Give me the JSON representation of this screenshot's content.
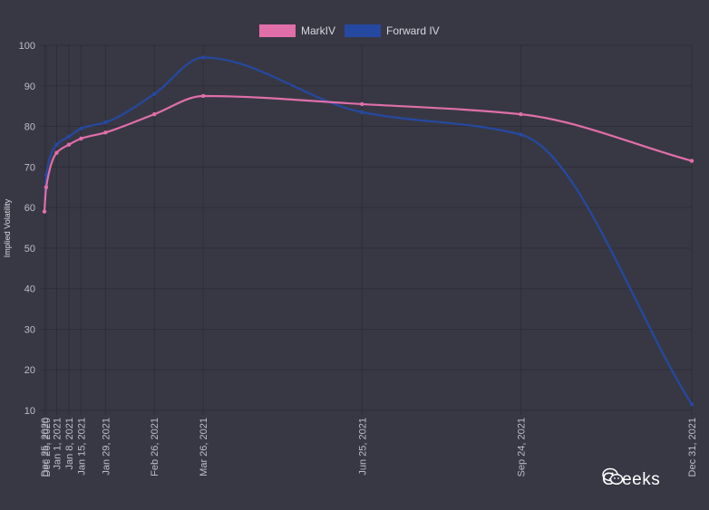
{
  "chart_data": {
    "type": "line",
    "ylabel": "Implied Volatility",
    "ylim": [
      10,
      100
    ],
    "yticks": [
      10,
      20,
      30,
      40,
      50,
      60,
      70,
      80,
      90,
      100
    ],
    "grid": true,
    "legend_position": "top-center",
    "categories": [
      "Dec 25, 2020",
      "Dec 26, 2020",
      "Jan 1, 2021",
      "Jan 8, 2021",
      "Jan 15, 2021",
      "Jan 29, 2021",
      "Feb 26, 2021",
      "Mar 26, 2021",
      "Jun 25, 2021",
      "Sep 24, 2021",
      "Dec 31, 2021"
    ],
    "x": [
      "2020-12-25",
      "2020-12-26",
      "2021-01-01",
      "2021-01-08",
      "2021-01-15",
      "2021-01-29",
      "2021-02-26",
      "2021-03-26",
      "2021-06-25",
      "2021-09-24",
      "2021-12-31"
    ],
    "series": [
      {
        "name": "MarkIV",
        "color": "#e06fa9",
        "values": [
          59,
          65,
          73.5,
          75.5,
          77,
          78.5,
          83,
          87.5,
          85.5,
          83,
          71.5
        ]
      },
      {
        "name": "Forward IV",
        "color": "#2549a0",
        "values": [
          59,
          68,
          75.5,
          77.5,
          79.5,
          81,
          88,
          97,
          83.5,
          78,
          11.5
        ]
      }
    ]
  },
  "colors": {
    "background": "#383845",
    "grid": "#2e2e38",
    "tick_text": "#bdbdc8"
  },
  "watermark": {
    "text": "Greeks",
    "icon": "wechat-icon"
  }
}
